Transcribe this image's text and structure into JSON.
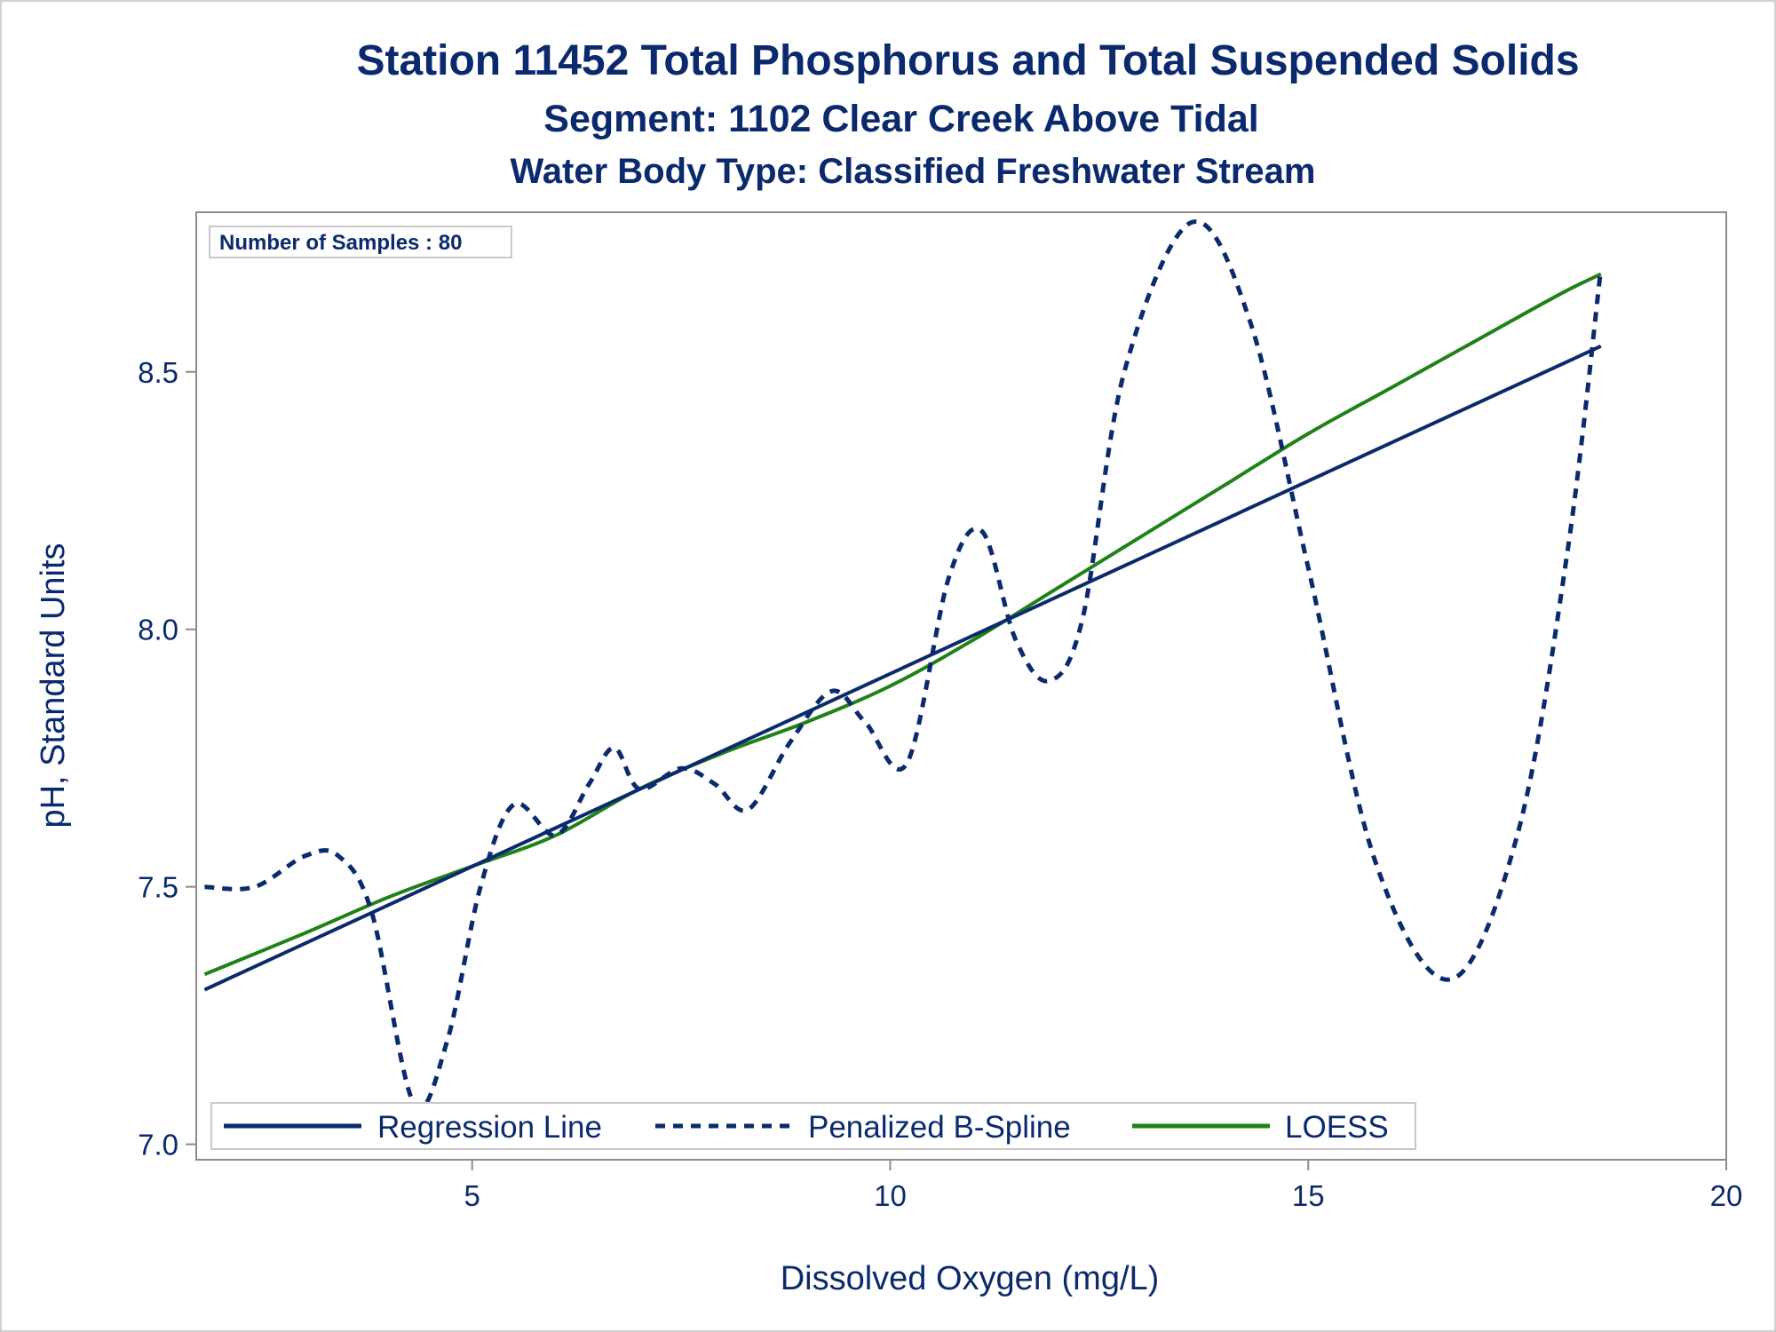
{
  "chart_data": {
    "type": "line",
    "title": "Station 11452  Total Phosphorus and Total Suspended Solids",
    "subtitle": "Segment: 1102  Clear Creek Above Tidal",
    "subtitle2": "Water Body Type: Classified Freshwater Stream",
    "xlabel": "Dissolved Oxygen (mg/L)",
    "ylabel": "pH, Standard Units",
    "xlim": [
      1.7,
      20.0
    ],
    "ylim": [
      6.97,
      8.81
    ],
    "xticks": [
      5,
      10,
      15,
      20
    ],
    "yticks": [
      7.0,
      7.5,
      8.0,
      8.5
    ],
    "xtick_labels": [
      "5",
      "10",
      "15",
      "20"
    ],
    "ytick_labels": [
      "7.0",
      "7.5",
      "8.0",
      "8.5"
    ],
    "inset_text": "Number of Samples : 80",
    "legend_position": "bottom-left-inside",
    "grid": false,
    "series": [
      {
        "name": "Regression Line",
        "style": "solid",
        "color": "#0b2a6e",
        "x": [
          1.8,
          18.5
        ],
        "y": [
          7.3,
          8.55
        ]
      },
      {
        "name": "Penalized B-Spline",
        "style": "dashed",
        "color": "#0b2a6e",
        "x": [
          1.8,
          2.4,
          3.0,
          3.4,
          3.8,
          4.3,
          4.7,
          5.1,
          5.5,
          6.0,
          6.4,
          6.7,
          7.0,
          7.5,
          7.9,
          8.3,
          8.8,
          9.3,
          9.7,
          10.2,
          10.7,
          11.1,
          11.5,
          11.9,
          12.3,
          12.8,
          13.6,
          14.3,
          15.0,
          15.8,
          16.7,
          17.5,
          18.1,
          18.5
        ],
        "y": [
          7.5,
          7.5,
          7.56,
          7.56,
          7.45,
          7.08,
          7.2,
          7.5,
          7.66,
          7.6,
          7.7,
          7.77,
          7.69,
          7.73,
          7.7,
          7.65,
          7.78,
          7.88,
          7.82,
          7.74,
          8.1,
          8.19,
          7.98,
          7.9,
          8.02,
          8.5,
          8.79,
          8.6,
          8.12,
          7.55,
          7.32,
          7.6,
          8.15,
          8.7
        ]
      },
      {
        "name": "LOESS",
        "style": "solid",
        "color": "#1e8216",
        "x": [
          1.8,
          3.0,
          4.0,
          5.0,
          6.0,
          7.0,
          8.0,
          9.0,
          10.0,
          11.0,
          12.0,
          13.0,
          14.0,
          15.0,
          16.0,
          17.0,
          18.0,
          18.5
        ],
        "y": [
          7.33,
          7.41,
          7.48,
          7.54,
          7.6,
          7.69,
          7.76,
          7.82,
          7.89,
          7.98,
          8.08,
          8.18,
          8.28,
          8.38,
          8.47,
          8.56,
          8.65,
          8.69
        ]
      }
    ]
  }
}
